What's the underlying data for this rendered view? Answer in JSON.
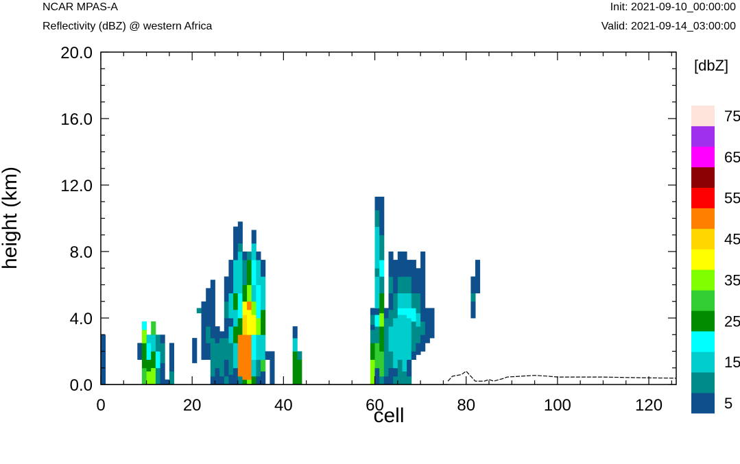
{
  "header": {
    "model": "NCAR MPAS-A",
    "subtitle": "Reflectivity (dBZ) @ western Africa",
    "init": "Init: 2021-09-10_00:00:00",
    "valid": "Valid: 2021-09-14_03:00:00"
  },
  "chart_data": {
    "type": "heatmap",
    "title": "Reflectivity (dBZ) @ western Africa",
    "xlabel": "cell",
    "ylabel": "height (km)",
    "xlim": [
      0,
      126
    ],
    "ylim": [
      0,
      20
    ],
    "xticks": [
      "0",
      "20",
      "40",
      "60",
      "80",
      "100",
      "120"
    ],
    "yticks": [
      "0.0",
      "4.0",
      "8.0",
      "12.0",
      "16.0",
      "20.0"
    ],
    "colorbar": {
      "units": "[dbZ]",
      "levels": [
        5,
        10,
        15,
        20,
        25,
        30,
        35,
        40,
        45,
        50,
        55,
        60,
        65,
        70,
        75
      ],
      "labels": [
        "5",
        "15",
        "25",
        "35",
        "45",
        "55",
        "65",
        "75"
      ],
      "colors": [
        "#0f4f8c",
        "#008b8b",
        "#00cdcd",
        "#00ffff",
        "#008b00",
        "#32cd32",
        "#7fff00",
        "#ffff00",
        "#ffd700",
        "#ff7f00",
        "#ff0000",
        "#8b0000",
        "#ff00ff",
        "#9f30ee",
        "#ffe4dc"
      ]
    },
    "terrain": [
      [
        76,
        0.2
      ],
      [
        77,
        0.5
      ],
      [
        79,
        0.6
      ],
      [
        80,
        0.8
      ],
      [
        81,
        0.5
      ],
      [
        82,
        0.2
      ],
      [
        84,
        0.2
      ],
      [
        85,
        0.3
      ],
      [
        86,
        0.2
      ],
      [
        88,
        0.35
      ],
      [
        89,
        0.45
      ],
      [
        92,
        0.5
      ],
      [
        95,
        0.55
      ],
      [
        98,
        0.5
      ],
      [
        100,
        0.45
      ],
      [
        105,
        0.45
      ],
      [
        110,
        0.45
      ],
      [
        115,
        0.42
      ],
      [
        120,
        0.4
      ],
      [
        126,
        0.38
      ]
    ],
    "columns": [
      {
        "x": 0.5,
        "cells": [
          [
            0,
            3.0,
            5
          ]
        ]
      },
      {
        "x": 8.5,
        "cells": [
          [
            1.5,
            2.5,
            5
          ]
        ]
      },
      {
        "x": 9.5,
        "cells": [
          [
            0,
            1.0,
            30
          ],
          [
            1.0,
            2.5,
            25
          ],
          [
            2.5,
            3.3,
            35
          ],
          [
            3.3,
            3.8,
            20
          ]
        ]
      },
      {
        "x": 10.5,
        "cells": [
          [
            0,
            0.8,
            35
          ],
          [
            0.8,
            1.5,
            25
          ],
          [
            1.5,
            2.5,
            20
          ],
          [
            2.5,
            3.0,
            15
          ]
        ]
      },
      {
        "x": 11.5,
        "cells": [
          [
            0,
            1.0,
            35
          ],
          [
            1.0,
            2.0,
            25
          ],
          [
            2.0,
            3.0,
            15
          ],
          [
            3.0,
            3.8,
            30
          ]
        ]
      },
      {
        "x": 12.5,
        "cells": [
          [
            0,
            1.0,
            10
          ],
          [
            1.0,
            2.0,
            20
          ],
          [
            2.0,
            3.0,
            10
          ]
        ]
      },
      {
        "x": 13.5,
        "cells": [
          [
            0,
            1.3,
            5
          ],
          [
            1.3,
            2.5,
            10
          ],
          [
            2.5,
            3.0,
            5
          ]
        ]
      },
      {
        "x": 14.5,
        "cells": [
          [
            0,
            0.3,
            5
          ]
        ]
      },
      {
        "x": 15.5,
        "cells": [
          [
            0,
            0.8,
            10
          ],
          [
            0.8,
            2.5,
            5
          ]
        ]
      },
      {
        "x": 20.5,
        "cells": [
          [
            1.3,
            2.8,
            5
          ]
        ]
      },
      {
        "x": 21.5,
        "cells": [
          [
            4.3,
            4.6,
            10
          ]
        ]
      },
      {
        "x": 22.5,
        "cells": [
          [
            1.5,
            5.0,
            5
          ]
        ]
      },
      {
        "x": 23.5,
        "cells": [
          [
            1.5,
            2.5,
            5
          ],
          [
            2.5,
            3.5,
            10
          ],
          [
            3.5,
            5.8,
            5
          ]
        ]
      },
      {
        "x": 24.5,
        "cells": [
          [
            0,
            0.5,
            5
          ],
          [
            0.5,
            2.8,
            10
          ],
          [
            2.8,
            3.5,
            5
          ],
          [
            3.5,
            6.3,
            5
          ]
        ]
      },
      {
        "x": 25.5,
        "cells": [
          [
            0,
            1.0,
            5
          ],
          [
            1.0,
            2.5,
            10
          ],
          [
            2.5,
            3.5,
            5
          ]
        ]
      },
      {
        "x": 26.5,
        "cells": [
          [
            0,
            0.5,
            5
          ],
          [
            0.5,
            1.5,
            10
          ],
          [
            1.5,
            2.8,
            10
          ],
          [
            2.8,
            3.2,
            5
          ]
        ]
      },
      {
        "x": 27.5,
        "cells": [
          [
            0,
            0.5,
            10
          ],
          [
            0.5,
            1.5,
            5
          ],
          [
            1.5,
            2.8,
            10
          ],
          [
            2.8,
            4.0,
            5
          ],
          [
            4.0,
            5.0,
            10
          ],
          [
            5.0,
            6.5,
            5
          ]
        ]
      },
      {
        "x": 28.5,
        "cells": [
          [
            0,
            0.6,
            5
          ],
          [
            0.6,
            2.5,
            10
          ],
          [
            2.5,
            3.5,
            15
          ],
          [
            3.5,
            4.0,
            5
          ],
          [
            4.0,
            5.5,
            15
          ],
          [
            5.5,
            7.5,
            5
          ]
        ]
      },
      {
        "x": 29.5,
        "cells": [
          [
            0,
            1.0,
            5
          ],
          [
            1.0,
            2.5,
            15
          ],
          [
            2.5,
            3.5,
            25
          ],
          [
            3.5,
            4.5,
            15
          ],
          [
            4.5,
            5.5,
            25
          ],
          [
            5.5,
            7.5,
            15
          ],
          [
            7.5,
            8.5,
            5
          ],
          [
            8.5,
            9.5,
            5
          ]
        ]
      },
      {
        "x": 30.5,
        "cells": [
          [
            0,
            0.5,
            10
          ],
          [
            0.5,
            3.0,
            50
          ],
          [
            3.0,
            4.0,
            25
          ],
          [
            4.0,
            5.5,
            20
          ],
          [
            5.5,
            6.5,
            15
          ],
          [
            6.5,
            8.0,
            15
          ],
          [
            8.0,
            8.5,
            10
          ],
          [
            8.5,
            9.8,
            5
          ]
        ]
      },
      {
        "x": 31.5,
        "cells": [
          [
            0,
            0.3,
            25
          ],
          [
            0.3,
            3.0,
            50
          ],
          [
            3.0,
            4.2,
            45
          ],
          [
            4.2,
            5.0,
            40
          ],
          [
            5.0,
            6.0,
            25
          ],
          [
            6.0,
            7.5,
            10
          ],
          [
            7.5,
            8.0,
            5
          ]
        ]
      },
      {
        "x": 32.5,
        "cells": [
          [
            0,
            0.3,
            35
          ],
          [
            0.3,
            3.0,
            50
          ],
          [
            3.0,
            4.5,
            40
          ],
          [
            4.5,
            5.0,
            50
          ],
          [
            5.0,
            6.0,
            35
          ],
          [
            6.0,
            7.5,
            25
          ],
          [
            7.5,
            8.0,
            10
          ]
        ]
      },
      {
        "x": 33.5,
        "cells": [
          [
            0,
            0.5,
            25
          ],
          [
            0.5,
            1.5,
            15
          ],
          [
            1.5,
            3.0,
            20
          ],
          [
            3.0,
            4.2,
            40
          ],
          [
            4.2,
            5.0,
            35
          ],
          [
            5.0,
            6.0,
            15
          ],
          [
            6.0,
            7.5,
            20
          ],
          [
            7.5,
            8.5,
            15
          ],
          [
            8.5,
            9.3,
            5
          ]
        ]
      },
      {
        "x": 34.5,
        "cells": [
          [
            0,
            0.5,
            5
          ],
          [
            0.5,
            1.5,
            10
          ],
          [
            1.5,
            3.0,
            15
          ],
          [
            3.0,
            4.0,
            35
          ],
          [
            4.0,
            6.0,
            20
          ],
          [
            6.0,
            7.5,
            15
          ],
          [
            7.5,
            8.0,
            5
          ]
        ]
      },
      {
        "x": 35.5,
        "cells": [
          [
            0,
            0.8,
            5
          ],
          [
            0.8,
            1.5,
            30
          ],
          [
            1.5,
            3.0,
            15
          ],
          [
            3.0,
            4.5,
            25
          ],
          [
            4.5,
            6.5,
            15
          ],
          [
            6.5,
            7.5,
            5
          ]
        ]
      },
      {
        "x": 36.5,
        "cells": [
          [
            1.5,
            2.0,
            5
          ]
        ]
      },
      {
        "x": 37.5,
        "cells": [
          [
            0,
            1.5,
            5
          ],
          [
            1.5,
            2.0,
            5
          ]
        ]
      },
      {
        "x": 42.5,
        "cells": [
          [
            0,
            2.0,
            25
          ],
          [
            2.0,
            2.8,
            15
          ],
          [
            2.8,
            3.5,
            5
          ]
        ]
      },
      {
        "x": 43.5,
        "cells": [
          [
            0,
            1.5,
            25
          ],
          [
            1.5,
            2.0,
            10
          ]
        ]
      },
      {
        "x": 59.5,
        "cells": [
          [
            0,
            1.5,
            35
          ],
          [
            1.5,
            2.5,
            25
          ],
          [
            2.5,
            3.3,
            10
          ],
          [
            3.3,
            3.6,
            5
          ],
          [
            3.6,
            4.2,
            10
          ],
          [
            4.2,
            4.6,
            5
          ]
        ]
      },
      {
        "x": 60.5,
        "cells": [
          [
            0,
            1.0,
            5
          ],
          [
            1.0,
            2.5,
            30
          ],
          [
            2.5,
            3.5,
            10
          ],
          [
            3.5,
            4.2,
            20
          ],
          [
            4.2,
            4.6,
            5
          ],
          [
            4.6,
            6.5,
            15
          ],
          [
            6.5,
            7.0,
            10
          ],
          [
            7.0,
            9.5,
            15
          ],
          [
            9.5,
            10.5,
            10
          ],
          [
            10.5,
            11.3,
            5
          ]
        ]
      },
      {
        "x": 61.5,
        "cells": [
          [
            0,
            0.5,
            10
          ],
          [
            0.5,
            2.0,
            30
          ],
          [
            2.0,
            3.5,
            25
          ],
          [
            3.5,
            4.3,
            35
          ],
          [
            4.3,
            5.5,
            25
          ],
          [
            5.5,
            6.5,
            10
          ],
          [
            6.5,
            7.5,
            20
          ],
          [
            7.5,
            9.0,
            10
          ],
          [
            9.0,
            11.3,
            5
          ]
        ]
      },
      {
        "x": 62.5,
        "cells": [
          [
            0,
            0.5,
            5
          ],
          [
            0.5,
            1.0,
            10
          ],
          [
            1.0,
            4.0,
            10
          ],
          [
            4.0,
            4.6,
            5
          ]
        ]
      },
      {
        "x": 63.5,
        "cells": [
          [
            0,
            1.0,
            5
          ],
          [
            1.0,
            2.0,
            10
          ],
          [
            2.0,
            3.5,
            15
          ],
          [
            3.5,
            4.5,
            10
          ],
          [
            4.5,
            5.5,
            5
          ],
          [
            5.5,
            6.5,
            10
          ],
          [
            6.5,
            8.0,
            5
          ]
        ]
      },
      {
        "x": 64.5,
        "cells": [
          [
            0,
            0.5,
            10
          ],
          [
            0.5,
            1.0,
            5
          ],
          [
            1.0,
            4.0,
            15
          ],
          [
            4.0,
            5.5,
            10
          ],
          [
            5.5,
            6.5,
            5
          ],
          [
            6.5,
            7.5,
            5
          ]
        ]
      },
      {
        "x": 65.5,
        "cells": [
          [
            0,
            0.3,
            10
          ],
          [
            0.3,
            1.5,
            10
          ],
          [
            1.5,
            4.2,
            15
          ],
          [
            4.2,
            4.6,
            20
          ],
          [
            4.6,
            5.5,
            15
          ],
          [
            5.5,
            6.5,
            10
          ],
          [
            6.5,
            7.3,
            5
          ],
          [
            7.3,
            8.0,
            5
          ]
        ]
      },
      {
        "x": 66.5,
        "cells": [
          [
            0,
            0.8,
            10
          ],
          [
            0.8,
            1.5,
            15
          ],
          [
            1.5,
            4.2,
            15
          ],
          [
            4.2,
            4.6,
            20
          ],
          [
            4.6,
            5.5,
            15
          ],
          [
            5.5,
            6.5,
            10
          ],
          [
            6.5,
            7.5,
            5
          ],
          [
            7.5,
            8.0,
            5
          ]
        ]
      },
      {
        "x": 67.5,
        "cells": [
          [
            0,
            0.5,
            10
          ],
          [
            0.5,
            1.5,
            5
          ],
          [
            1.5,
            4.0,
            15
          ],
          [
            4.0,
            4.6,
            20
          ],
          [
            4.6,
            5.5,
            15
          ],
          [
            5.5,
            6.5,
            10
          ],
          [
            6.5,
            7.5,
            5
          ]
        ]
      },
      {
        "x": 68.5,
        "cells": [
          [
            1.5,
            2.0,
            5
          ],
          [
            2.0,
            3.8,
            10
          ],
          [
            3.8,
            4.6,
            20
          ],
          [
            4.6,
            5.5,
            10
          ],
          [
            5.5,
            7.5,
            5
          ]
        ]
      },
      {
        "x": 69.5,
        "cells": [
          [
            1.8,
            2.5,
            5
          ],
          [
            2.5,
            3.5,
            10
          ],
          [
            3.5,
            4.3,
            15
          ],
          [
            4.3,
            5.5,
            10
          ],
          [
            5.5,
            6.5,
            5
          ],
          [
            6.5,
            7.0,
            5
          ]
        ]
      },
      {
        "x": 70.5,
        "cells": [
          [
            2.0,
            3.0,
            5
          ],
          [
            3.0,
            3.8,
            10
          ],
          [
            3.8,
            4.6,
            5
          ],
          [
            4.6,
            7.5,
            5
          ],
          [
            7.5,
            8.0,
            5
          ]
        ]
      },
      {
        "x": 71.5,
        "cells": [
          [
            2.5,
            4.6,
            5
          ]
        ]
      },
      {
        "x": 72.5,
        "cells": [
          [
            2.8,
            4.6,
            5
          ]
        ]
      },
      {
        "x": 81.5,
        "cells": [
          [
            4.0,
            5.0,
            5
          ],
          [
            5.0,
            5.5,
            10
          ],
          [
            5.5,
            6.5,
            5
          ]
        ]
      },
      {
        "x": 82.5,
        "cells": [
          [
            5.5,
            7.5,
            5
          ]
        ]
      }
    ]
  }
}
